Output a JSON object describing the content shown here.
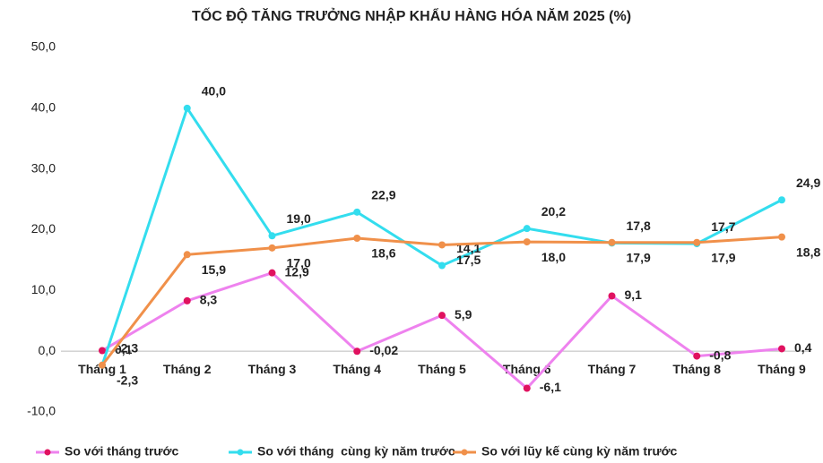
{
  "chart_data": {
    "type": "line",
    "title": "TỐC ĐỘ TĂNG TRƯỞNG NHẬP KHẨU HÀNG HÓA NĂM 2025 (%)",
    "categories": [
      "Tháng 1",
      "Tháng 2",
      "Tháng 3",
      "Tháng 4",
      "Tháng 5",
      "Tháng 6",
      "Tháng 7",
      "Tháng 8",
      "Tháng 9"
    ],
    "series": [
      {
        "name": "So với tháng trước",
        "color": "#ee82ee",
        "marker_color": "#e0115f",
        "values": [
          0.1,
          8.3,
          12.9,
          -0.02,
          5.9,
          -6.1,
          9.1,
          -0.8,
          0.4
        ],
        "value_labels": [
          "0,1",
          "8,3",
          "12,9",
          "-0,02",
          "5,9",
          "-6,1",
          "9,1",
          "-0,8",
          "0,4"
        ]
      },
      {
        "name": "So với tháng  cùng kỳ năm trước",
        "color": "#33ddee",
        "values": [
          -2.3,
          40.0,
          19.0,
          22.9,
          14.1,
          20.2,
          17.8,
          17.7,
          24.9
        ],
        "value_labels": [
          "-2,3",
          "40,0",
          "19,0",
          "22,9",
          "14,1",
          "20,2",
          "17,8",
          "17,7",
          "24,9"
        ]
      },
      {
        "name": "So với lũy kế cùng kỳ năm trước",
        "color": "#f0904a",
        "values": [
          -2.3,
          15.9,
          17.0,
          18.6,
          17.5,
          18.0,
          17.9,
          17.9,
          18.8
        ],
        "value_labels": [
          "-2,3",
          "15,9",
          "17,0",
          "18,6",
          "17,5",
          "18,0",
          "17,9",
          "17,9",
          "18,8"
        ]
      }
    ],
    "ylim": [
      -10,
      50
    ],
    "yticks": [
      {
        "value": -10,
        "label": "-10,0"
      },
      {
        "value": 0,
        "label": "0,0"
      },
      {
        "value": 10,
        "label": "10,0"
      },
      {
        "value": 20,
        "label": "20,0"
      },
      {
        "value": 30,
        "label": "30,0"
      },
      {
        "value": 40,
        "label": "40,0"
      },
      {
        "value": 50,
        "label": "50,0"
      }
    ],
    "legend": "bottom"
  }
}
